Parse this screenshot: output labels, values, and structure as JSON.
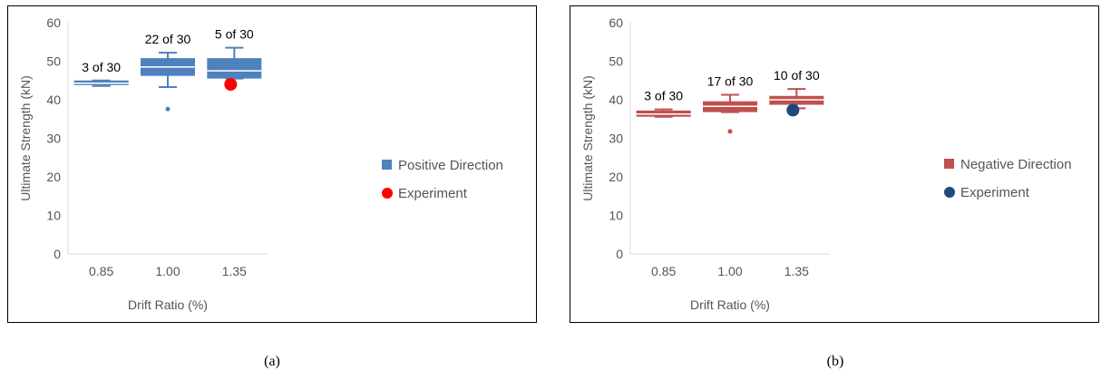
{
  "chart_data": [
    {
      "type": "box",
      "panel_label": "(a)",
      "xlabel": "Drift Ratio (%)",
      "ylabel": "Ultimate Strength (kN)",
      "ylim": [
        0,
        60
      ],
      "yticks": [
        0,
        10,
        20,
        30,
        40,
        50,
        60
      ],
      "categories": [
        "0.85",
        "1.00",
        "1.35"
      ],
      "grid": false,
      "legend_position": "right",
      "series": [
        {
          "name": "Positive Direction",
          "color": "#4f81bd",
          "boxes": [
            {
              "min": 43.6,
              "q1": 43.8,
              "median": 44.3,
              "q3": 45.0,
              "max": 45.0,
              "outliers": []
            },
            {
              "min": 43.3,
              "q1": 46.2,
              "median": 48.5,
              "q3": 50.8,
              "max": 52.2,
              "outliers": [
                37.6
              ]
            },
            {
              "min": 45.5,
              "q1": 45.5,
              "median": 47.5,
              "q3": 50.8,
              "max": 53.5,
              "outliers": []
            }
          ],
          "counts": [
            "3 of 30",
            "22 of 30",
            "5 of 30"
          ]
        },
        {
          "name": "Experiment",
          "color": "#ff0000",
          "points": [
            {
              "x": "1.35",
              "y": 44.0
            }
          ]
        }
      ]
    },
    {
      "type": "box",
      "panel_label": "(b)",
      "xlabel": "Drift Ratio (%)",
      "ylabel": "Ultimate Strength (kN)",
      "ylim": [
        0,
        60
      ],
      "yticks": [
        0,
        10,
        20,
        30,
        40,
        50,
        60
      ],
      "categories": [
        "0.85",
        "1.00",
        "1.35"
      ],
      "grid": false,
      "legend_position": "right",
      "series": [
        {
          "name": "Negative Direction",
          "color": "#c0504d",
          "boxes": [
            {
              "min": 35.6,
              "q1": 35.6,
              "median": 36.3,
              "q3": 37.2,
              "max": 37.5,
              "outliers": []
            },
            {
              "min": 36.8,
              "q1": 36.8,
              "median": 38.3,
              "q3": 39.6,
              "max": 41.3,
              "outliers": [
                31.8
              ]
            },
            {
              "min": 37.8,
              "q1": 38.7,
              "median": 40.0,
              "q3": 41.0,
              "max": 42.8,
              "outliers": []
            }
          ],
          "counts": [
            "3 of 30",
            "17 of 30",
            "10 of 30"
          ]
        },
        {
          "name": "Experiment",
          "color": "#1f497d",
          "points": [
            {
              "x": "1.35",
              "y": 37.3
            }
          ]
        }
      ]
    }
  ]
}
